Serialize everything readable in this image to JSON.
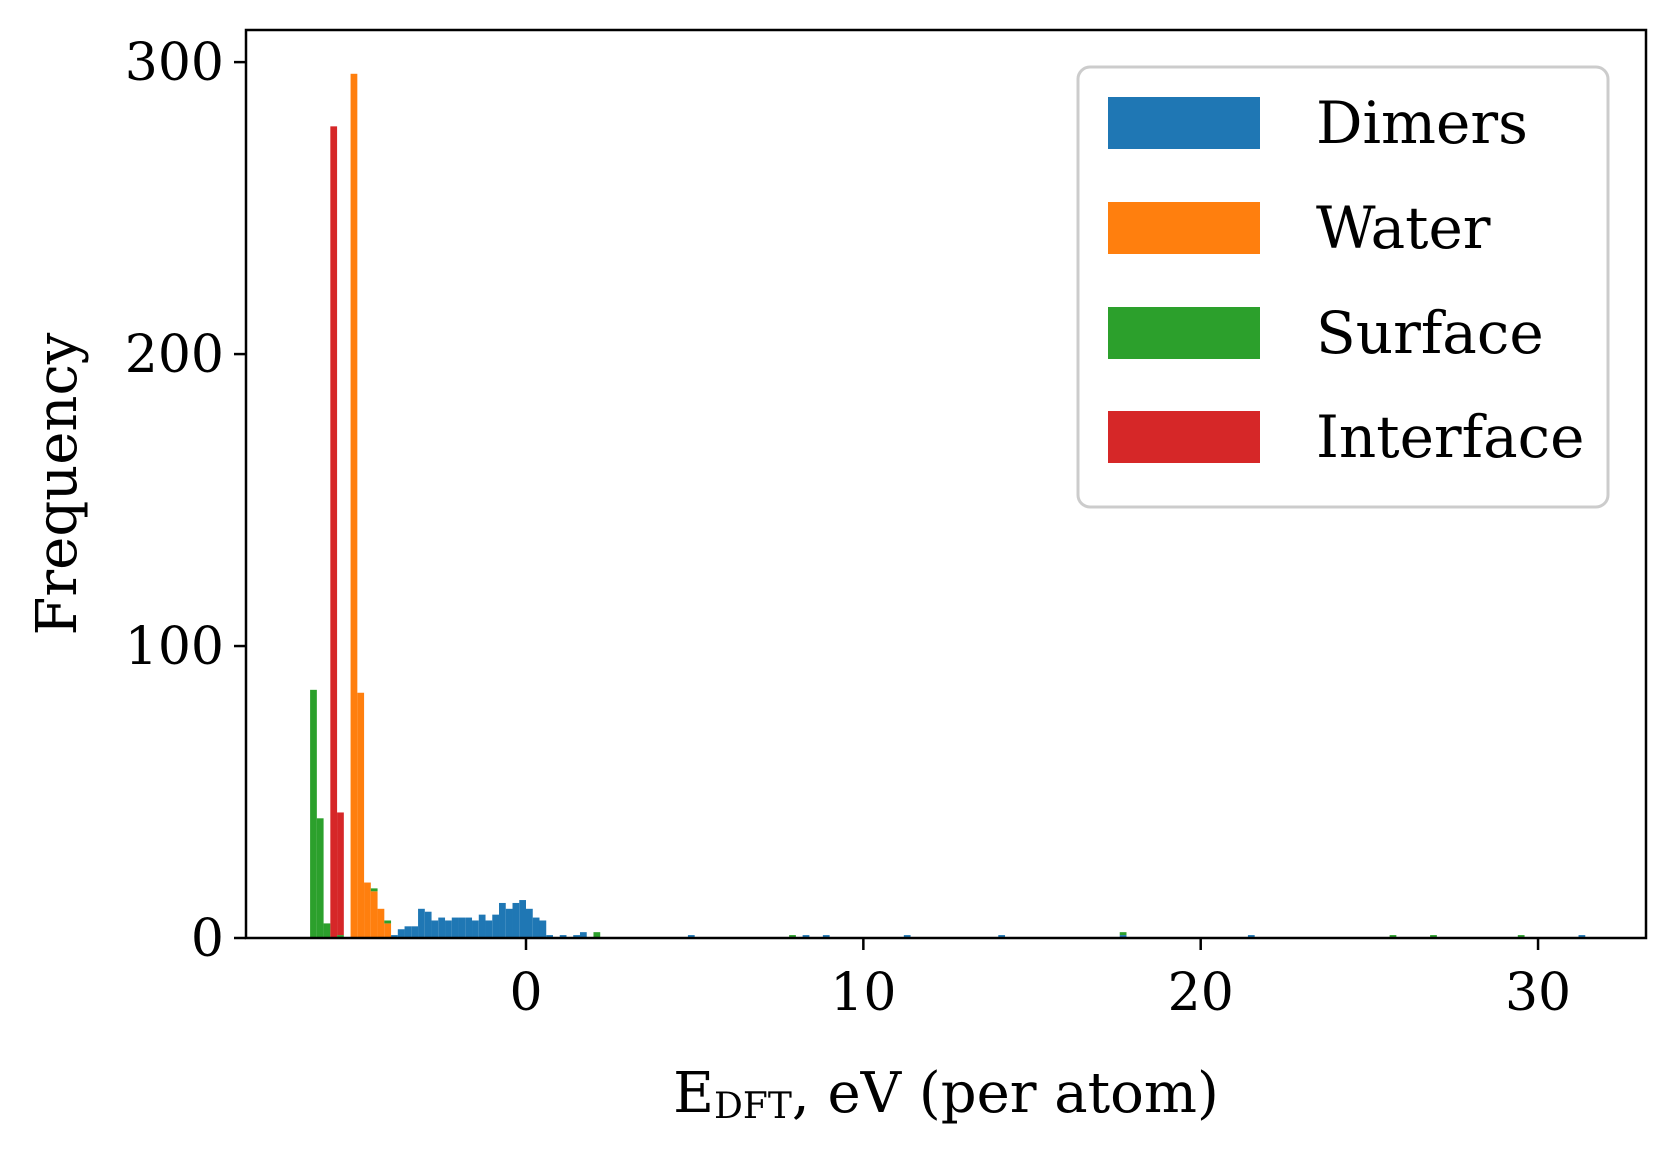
{
  "chart_data": {
    "type": "bar",
    "subtype": "stacked-histogram",
    "xlabel": "E_DFT, eV (per atom)",
    "xlabel_main": "E",
    "xlabel_sub": "DFT",
    "xlabel_rest": ", eV (per atom)",
    "ylabel": "Frequency",
    "xlim": [
      -8.3,
      33.2
    ],
    "ylim": [
      0,
      311
    ],
    "x_ticks": [
      0,
      10,
      20,
      30
    ],
    "y_ticks": [
      0,
      100,
      200,
      300
    ],
    "bin_width": 0.2,
    "stack_order": [
      "Dimers",
      "Water",
      "Surface",
      "Interface"
    ],
    "legend_position": "top-right",
    "grid": false,
    "series": [
      {
        "name": "Dimers",
        "color": "#1f77b4",
        "bins": [
          [
            -4.0,
            1
          ],
          [
            -3.8,
            3
          ],
          [
            -3.6,
            4
          ],
          [
            -3.4,
            4
          ],
          [
            -3.2,
            10
          ],
          [
            -3.0,
            9
          ],
          [
            -2.8,
            6
          ],
          [
            -2.6,
            7
          ],
          [
            -2.4,
            6
          ],
          [
            -2.2,
            7
          ],
          [
            -2.0,
            7
          ],
          [
            -1.8,
            7
          ],
          [
            -1.6,
            6
          ],
          [
            -1.4,
            8
          ],
          [
            -1.2,
            6
          ],
          [
            -1.0,
            8
          ],
          [
            -0.8,
            12
          ],
          [
            -0.6,
            10
          ],
          [
            -0.4,
            12
          ],
          [
            -0.2,
            13
          ],
          [
            0.0,
            10
          ],
          [
            0.2,
            7
          ],
          [
            0.4,
            6
          ],
          [
            0.6,
            1
          ],
          [
            1.0,
            1
          ],
          [
            1.4,
            1
          ],
          [
            1.6,
            2
          ],
          [
            4.8,
            1
          ],
          [
            8.2,
            1
          ],
          [
            8.8,
            1
          ],
          [
            11.2,
            1
          ],
          [
            14.0,
            1
          ],
          [
            17.6,
            1
          ],
          [
            21.4,
            1
          ],
          [
            31.2,
            1
          ]
        ]
      },
      {
        "name": "Water",
        "color": "#ff7f0e",
        "bins": [
          [
            -5.2,
            296
          ],
          [
            -5.0,
            84
          ],
          [
            -4.8,
            19
          ],
          [
            -4.6,
            16
          ],
          [
            -4.4,
            10
          ],
          [
            -4.2,
            5
          ]
        ]
      },
      {
        "name": "Surface",
        "color": "#2ca02c",
        "bins": [
          [
            -6.4,
            85
          ],
          [
            -6.2,
            41
          ],
          [
            -6.0,
            5
          ],
          [
            -5.6,
            1
          ],
          [
            -4.6,
            1
          ],
          [
            -4.2,
            1
          ],
          [
            2.0,
            2
          ],
          [
            7.8,
            1
          ],
          [
            17.6,
            1
          ],
          [
            25.6,
            1
          ],
          [
            26.8,
            1
          ],
          [
            29.4,
            1
          ]
        ]
      },
      {
        "name": "Interface",
        "color": "#d62728",
        "bins": [
          [
            -5.8,
            278
          ],
          [
            -5.6,
            42
          ]
        ]
      }
    ]
  }
}
